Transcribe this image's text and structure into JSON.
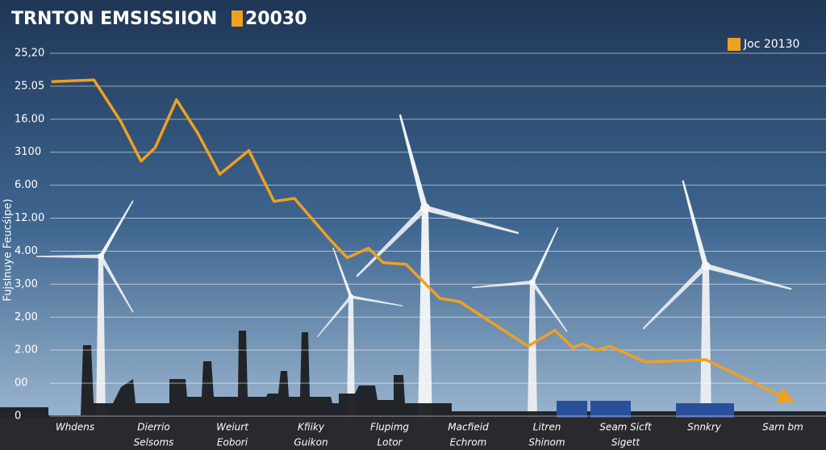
{
  "chart_data": {
    "type": "line",
    "title": "TRNTON EMSISSIION",
    "title_tag": "20030",
    "y_label": "Fujslnuye Feucśipe)",
    "categories": [
      [
        "Whdens"
      ],
      [
        "Dierrio",
        "Selsoms"
      ],
      [
        "Weiurt",
        "Eobori"
      ],
      [
        "Kfiiky",
        "Guikon"
      ],
      [
        "Flupimg",
        "Lotor"
      ],
      [
        "Macfieid",
        "Echrom"
      ],
      [
        "Litren",
        "Shinom"
      ],
      [
        "Seam Sicft",
        "Sigett"
      ],
      [
        "Snnkry"
      ],
      [
        "Sarn bm"
      ]
    ],
    "xlim": [
      -0.32,
      9.5
    ],
    "ylim": [
      0,
      11
    ],
    "yticks": [
      {
        "value": 0,
        "label": "0"
      },
      {
        "value": 1,
        "label": "00"
      },
      {
        "value": 2,
        "label": "2.00"
      },
      {
        "value": 3,
        "label": "2,00"
      },
      {
        "value": 4,
        "label": "3,00"
      },
      {
        "value": 5,
        "label": "4.00"
      },
      {
        "value": 6,
        "label": "12.00"
      },
      {
        "value": 7,
        "label": "6.00"
      },
      {
        "value": 8,
        "label": "3100"
      },
      {
        "value": 9,
        "label": "16.00"
      },
      {
        "value": 10,
        "label": "25.05"
      },
      {
        "value": 11,
        "label": "25,20"
      }
    ],
    "grid": true,
    "legend": "upper right",
    "series": [
      {
        "name": "Joc 20130",
        "color": "#f0a020",
        "x": [
          -0.3,
          0.24,
          0.58,
          0.84,
          1.02,
          1.29,
          1.56,
          1.84,
          2.21,
          2.53,
          2.79,
          3.25,
          3.46,
          3.73,
          3.92,
          4.21,
          4.64,
          4.89,
          5.76,
          6.1,
          6.33,
          6.45,
          6.64,
          6.8,
          7.25,
          8.02,
          9.05
        ],
        "values": [
          10.14,
          10.19,
          8.94,
          7.73,
          8.14,
          9.59,
          8.58,
          7.33,
          8.05,
          6.51,
          6.6,
          5.33,
          4.8,
          5.09,
          4.65,
          4.6,
          3.57,
          3.47,
          2.12,
          2.6,
          2.07,
          2.19,
          2.0,
          2.12,
          1.64,
          1.71,
          0.53
        ]
      }
    ]
  }
}
